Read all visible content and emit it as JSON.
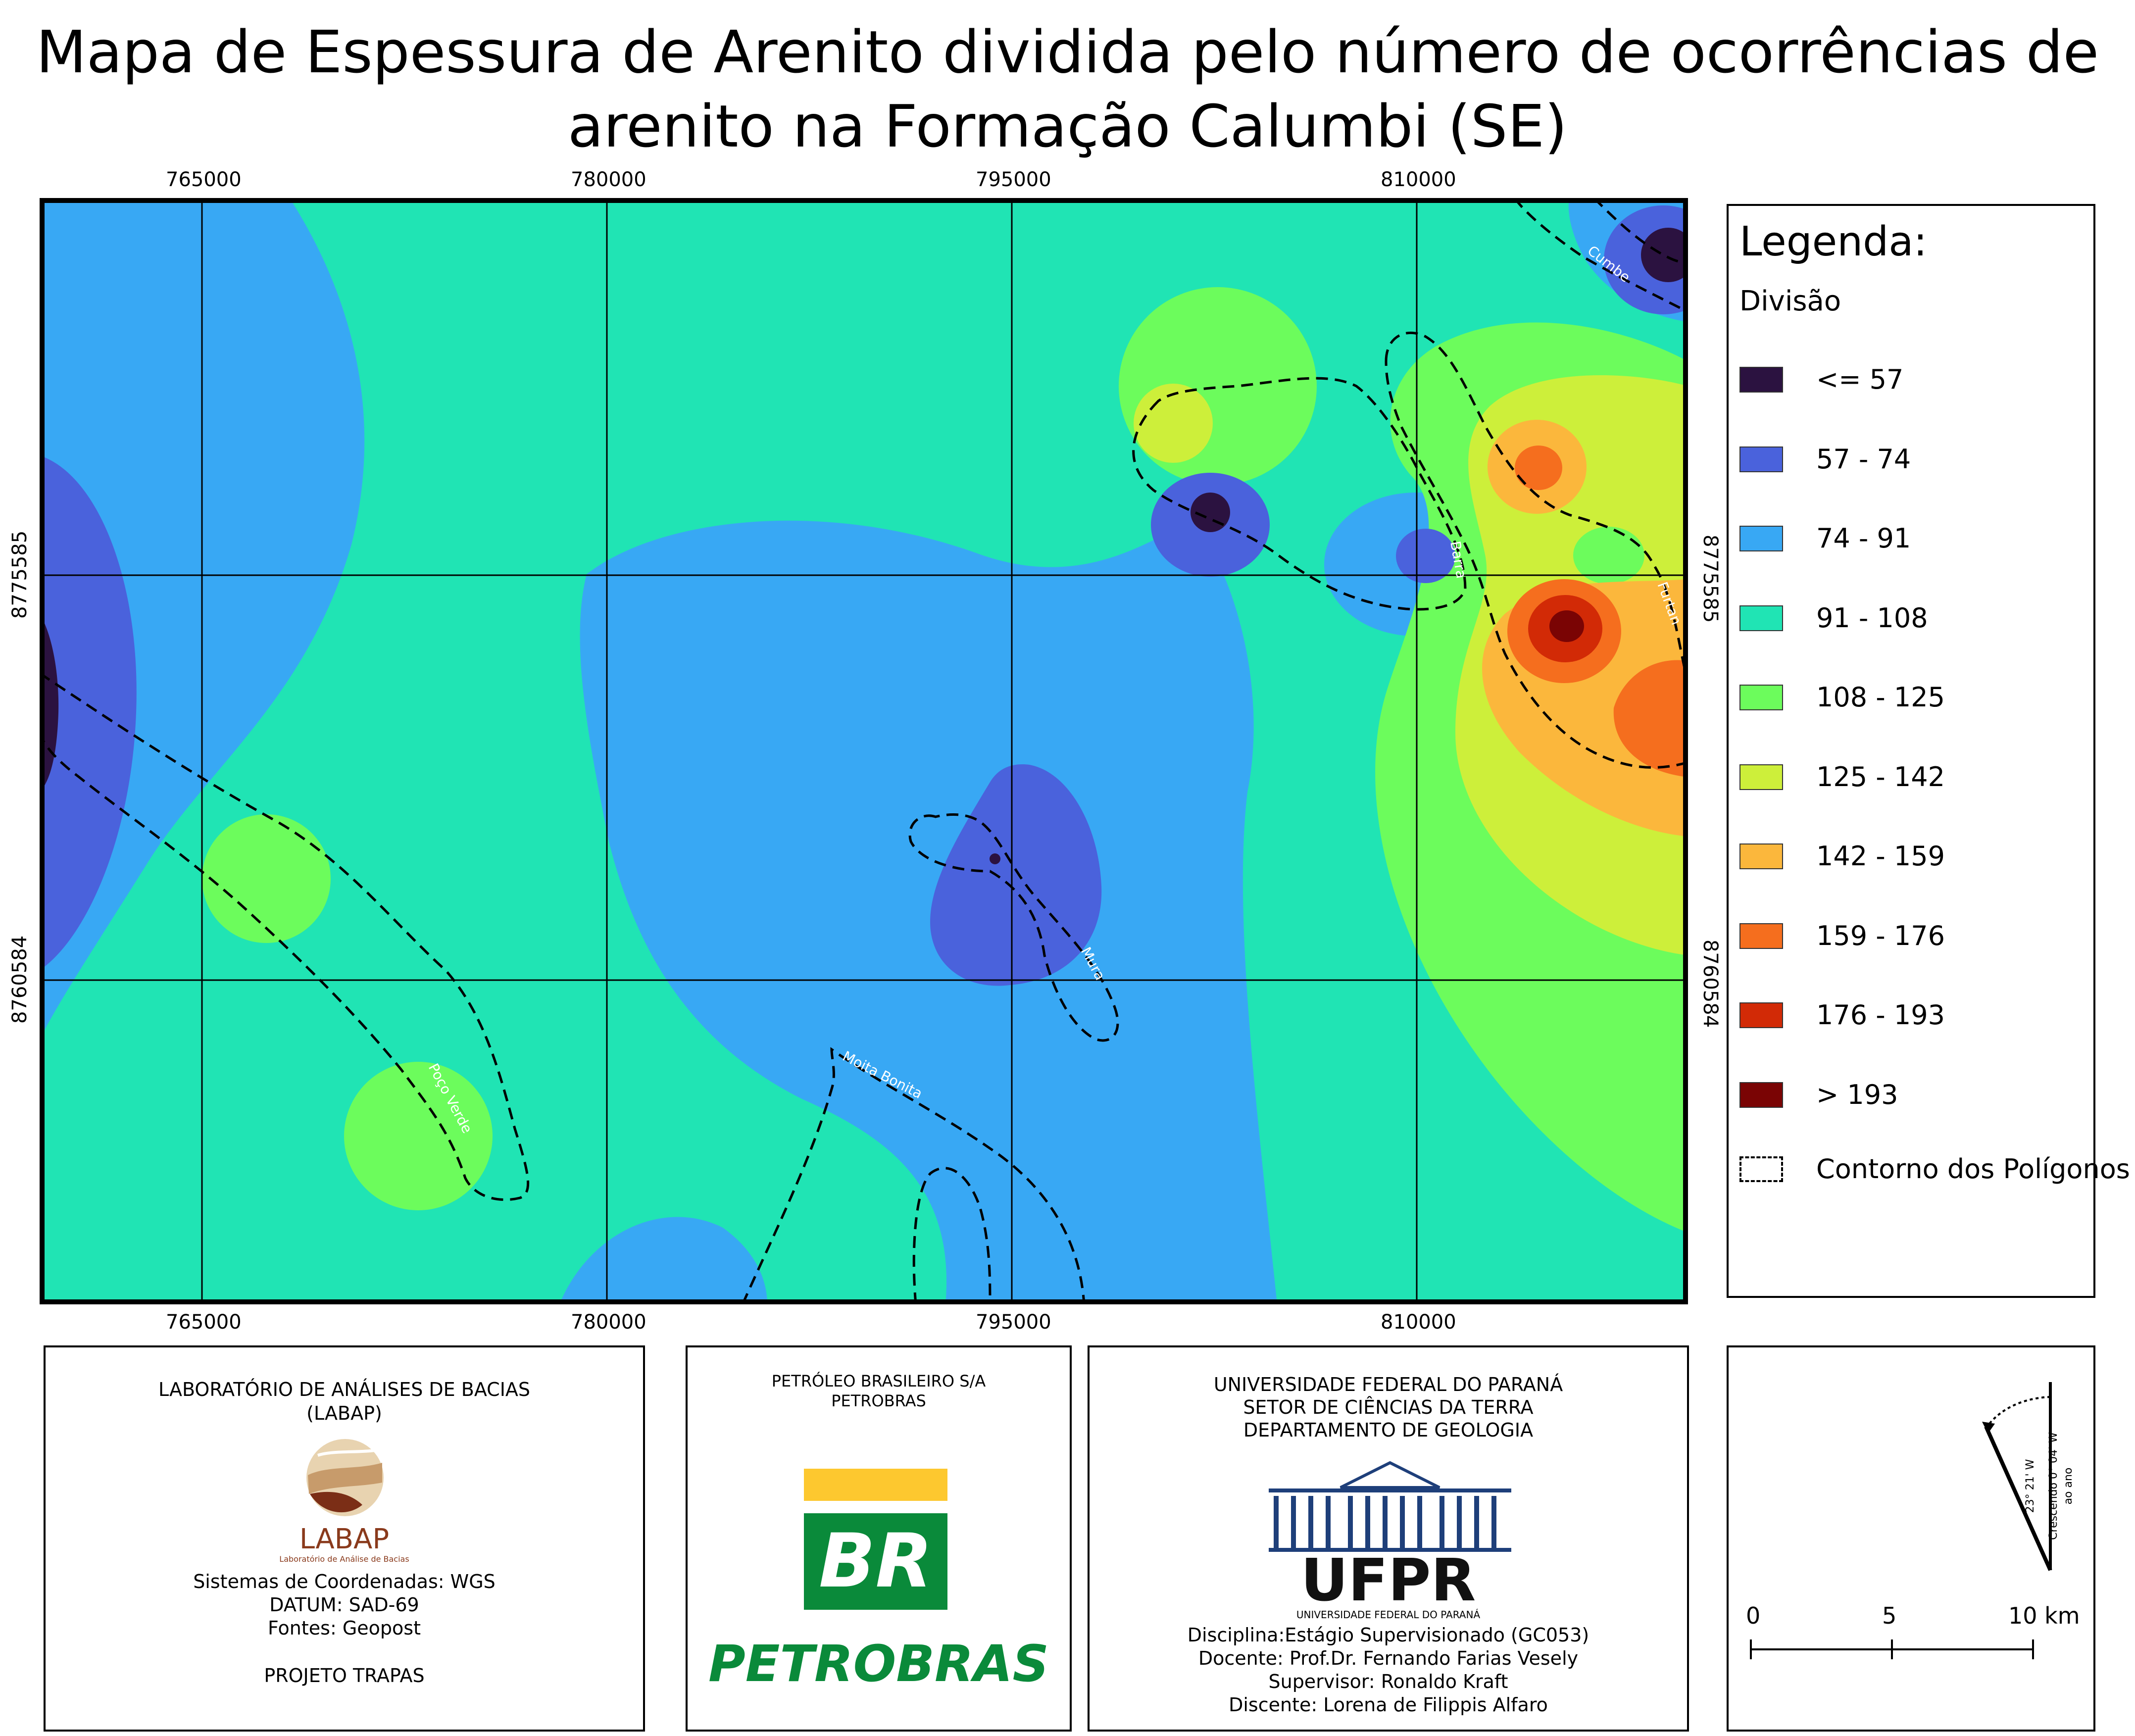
{
  "title": {
    "line1": "Mapa de Espessura de Arenito dividida pelo número de ocorrências de",
    "line2": "arenito na Formação Calumbi (SE)"
  },
  "map": {
    "x_ticks": [
      "765000",
      "780000",
      "795000",
      "810000"
    ],
    "y_ticks": [
      "8775585",
      "8760584"
    ],
    "field_labels": {
      "cumbe": "Cumbe",
      "barra": "Barra",
      "furtan": "Furtan",
      "mura": "Mura",
      "moita_bonita": "Moita Bonita",
      "poco_verde": "Poço Verde"
    }
  },
  "legend": {
    "title": "Legenda:",
    "subtitle": "Divisão",
    "items": [
      {
        "label": "<= 57",
        "color": "#2b1240"
      },
      {
        "label": "57 - 74",
        "color": "#4a62dc"
      },
      {
        "label": "74 - 91",
        "color": "#38a8f4"
      },
      {
        "label": "91 - 108",
        "color": "#20e4b4"
      },
      {
        "label": "108 - 125",
        "color": "#6cfc5c"
      },
      {
        "label": "125 - 142",
        "color": "#cdef3a"
      },
      {
        "label": "142 - 159",
        "color": "#fbb73c"
      },
      {
        "label": "159 - 176",
        "color": "#f56e1e"
      },
      {
        "label": "176 - 193",
        "color": "#d22a06"
      },
      {
        "label": "> 193",
        "color": "#7a0404"
      }
    ],
    "contour_label": "Contorno dos Polígonos"
  },
  "labap_panel": {
    "line1": "LABORATÓRIO DE ANÁLISES DE BACIAS",
    "line2": "(LABAP)",
    "logo_text": "LABAP",
    "logo_subtext": "Laboratório de Análise de Bacias",
    "coords": "Sistemas de Coordenadas: WGS",
    "datum": "DATUM: SAD-69",
    "sources": "Fontes: Geopost",
    "project": "PROJETO TRAPAS"
  },
  "petrobras_panel": {
    "line1": "PETRÓLEO BRASILEIRO S/A",
    "line2": "PETROBRAS",
    "logo_br": "BR",
    "logo_name": "PETROBRAS"
  },
  "ufpr_panel": {
    "line1": "UNIVERSIDADE FEDERAL DO PARANÁ",
    "line2": "SETOR DE CIÊNCIAS DA TERRA",
    "line3": "DEPARTAMENTO DE GEOLOGIA",
    "logo_text": "UFPR",
    "logo_subtext": "UNIVERSIDADE FEDERAL DO PARANÁ",
    "discipline": "Disciplina:Estágio Supervisionado (GC053)",
    "teacher": "Docente: Prof.Dr. Fernando Farias Vesely",
    "supervisor": "Supervisor: Ronaldo Kraft",
    "student": "Discente: Lorena de Filippis Alfaro"
  },
  "scale_panel": {
    "declination": "23° 21' W",
    "growth": "Crescendo 0° 04' W",
    "per_year": "ao ano",
    "scale_labels": [
      "0",
      "5",
      "10 km"
    ]
  }
}
